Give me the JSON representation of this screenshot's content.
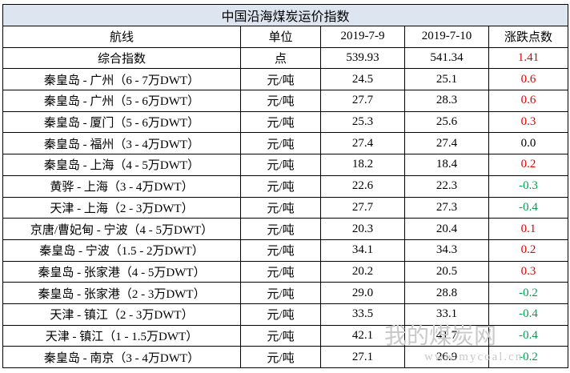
{
  "table": {
    "title": "中国沿海煤炭运价指数",
    "header": [
      "航线",
      "单位",
      "2019-7-9",
      "2019-7-10",
      "涨跌点数"
    ],
    "rows": [
      [
        "综合指数",
        "点",
        "539.93",
        "541.34",
        "1.41"
      ],
      [
        "秦皇岛 - 广州（6 - 7万DWT）",
        "元/吨",
        "24.5",
        "25.1",
        "0.6"
      ],
      [
        "秦皇岛 - 广州（5 - 6万DWT）",
        "元/吨",
        "27.7",
        "28.3",
        "0.6"
      ],
      [
        "秦皇岛 - 厦门（5 - 6万DWT）",
        "元/吨",
        "25.3",
        "25.6",
        "0.3"
      ],
      [
        "秦皇岛 - 福州（3 - 4万DWT）",
        "元/吨",
        "27.4",
        "27.4",
        "0.0"
      ],
      [
        "秦皇岛 - 上海（4 - 5万DWT）",
        "元/吨",
        "18.2",
        "18.4",
        "0.2"
      ],
      [
        "黄骅 - 上海（3 - 4万DWT）",
        "元/吨",
        "22.6",
        "22.3",
        "-0.3"
      ],
      [
        "天津 - 上海（2 - 3万DWT）",
        "元/吨",
        "27.7",
        "27.3",
        "-0.4"
      ],
      [
        "京唐/曹妃甸 - 宁波（4 - 5万DWT）",
        "元/吨",
        "20.3",
        "20.4",
        "0.1"
      ],
      [
        "秦皇岛 - 宁波（1.5 - 2万DWT）",
        "元/吨",
        "34.1",
        "34.3",
        "0.2"
      ],
      [
        "秦皇岛 - 张家港（4 - 5万DWT）",
        "元/吨",
        "20.2",
        "20.5",
        "0.3"
      ],
      [
        "秦皇岛 - 张家港（2 - 3万DWT）",
        "元/吨",
        "29.0",
        "28.8",
        "-0.2"
      ],
      [
        "天津 - 镇江（2 - 3万DWT）",
        "元/吨",
        "33.5",
        "33.1",
        "-0.4"
      ],
      [
        "天津 - 镇江（1 - 1.5万DWT）",
        "元/吨",
        "42.1",
        "41.7",
        "-0.4"
      ],
      [
        "秦皇岛 - 南京（3 - 4万DWT）",
        "元/吨",
        "27.1",
        "26.9",
        "-0.2"
      ]
    ]
  },
  "watermark": {
    "name": "我的煤炭网",
    "url": "www.mycoal.cn"
  }
}
